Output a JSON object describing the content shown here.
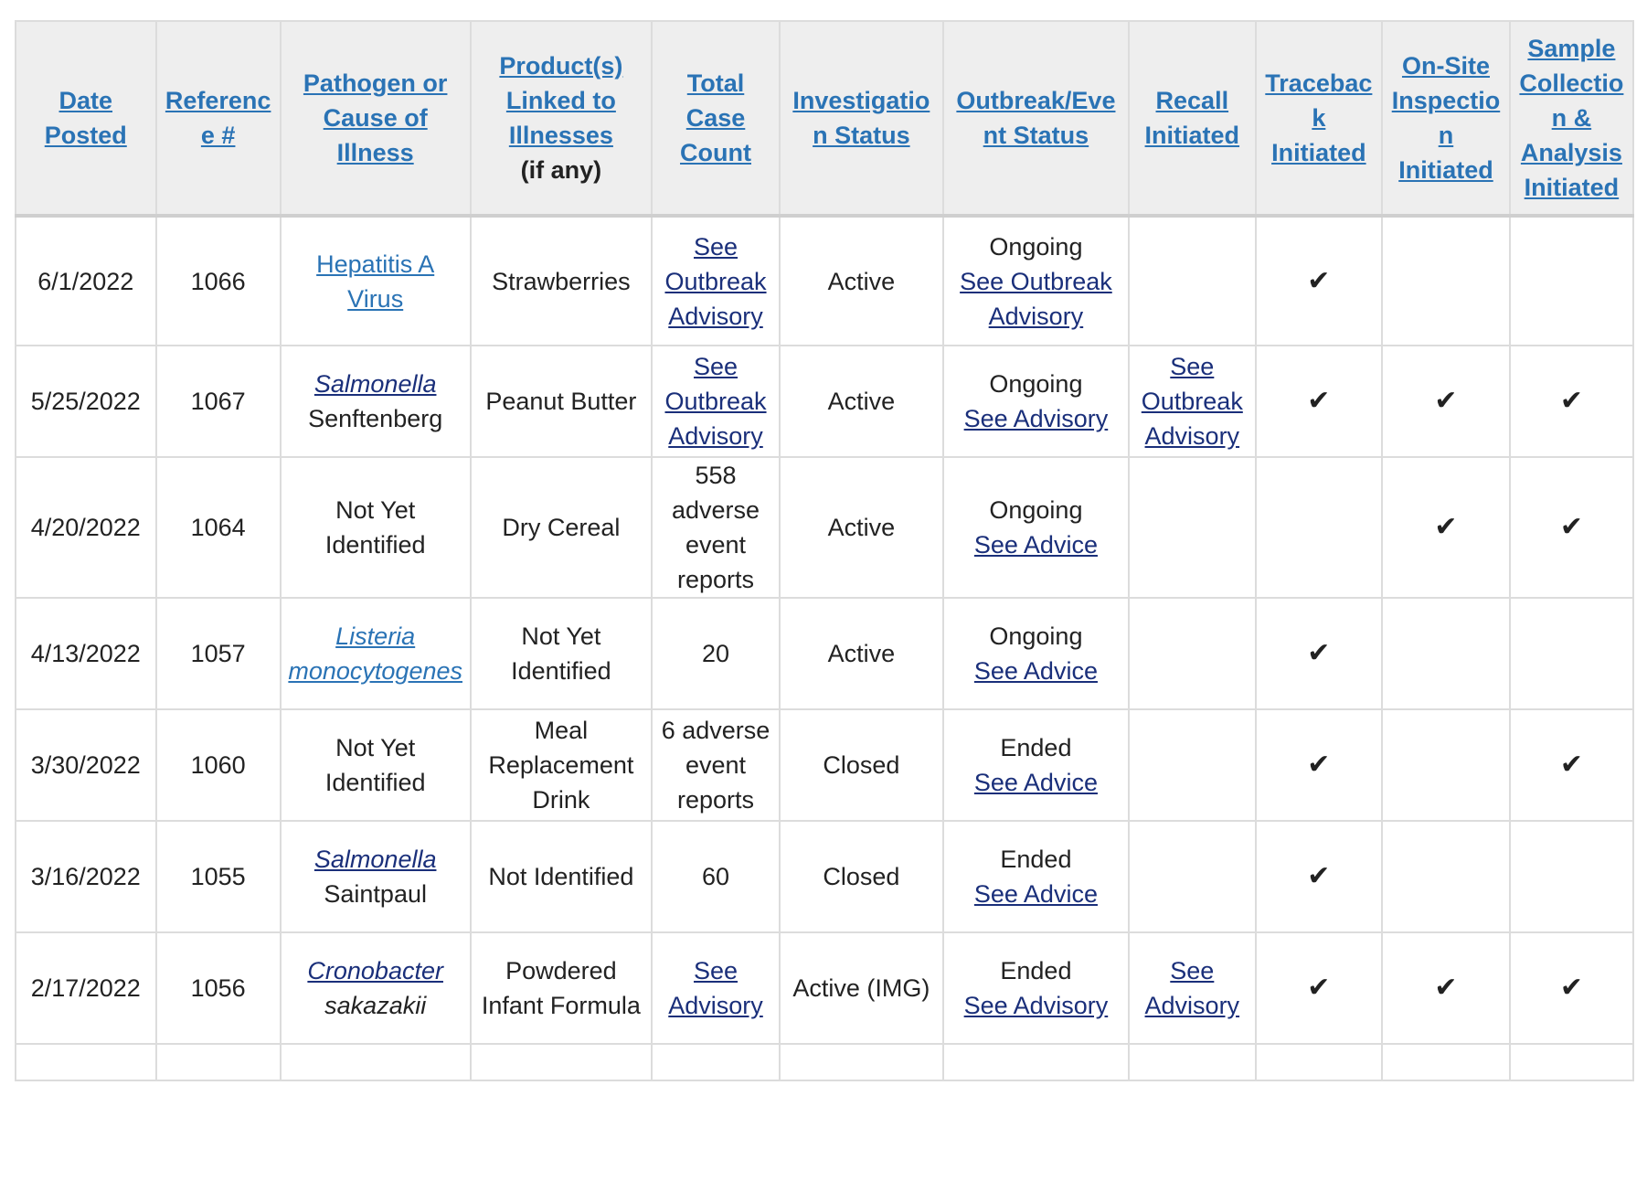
{
  "headers": {
    "date_posted": "Date Posted",
    "reference": "Reference #",
    "pathogen": "Pathogen or Cause of Illness",
    "products": "Product(s) Linked to Illnesses",
    "products_note": "(if any)",
    "case_count": "Total Case Count",
    "investigation_status": "Investigation Status",
    "outbreak_status": "Outbreak/Event Status",
    "recall": "Recall Initiated",
    "traceback": "Traceback Initiated",
    "onsite": "On-Site Inspection Initiated",
    "sample": "Sample Collection & Analysis Initiated"
  },
  "check_mark": "✔",
  "rows": [
    {
      "date": "6/1/2022",
      "ref": "1066",
      "pathogen_link": "Hepatitis A Virus",
      "pathogen_text": "",
      "product": "Strawberries",
      "case_link": "See Outbreak Advisory",
      "case_text": "",
      "investigation": "Active",
      "outbreak_state": "Ongoing",
      "outbreak_link": "See Outbreak Advisory",
      "recall_link": "",
      "traceback": true,
      "onsite": false,
      "sample": false
    },
    {
      "date": "5/25/2022",
      "ref": "1067",
      "pathogen_link": "Salmonella",
      "pathogen_text": "Senftenberg",
      "product": "Peanut Butter",
      "case_link": "See Outbreak Advisory",
      "case_text": "",
      "investigation": "Active",
      "outbreak_state": "Ongoing",
      "outbreak_link": "See Advisory",
      "recall_link": "See Outbreak Advisory",
      "traceback": true,
      "onsite": true,
      "sample": true
    },
    {
      "date": "4/20/2022",
      "ref": "1064",
      "pathogen_link": "",
      "pathogen_text": "Not Yet Identified",
      "product": "Dry Cereal",
      "case_link": "",
      "case_text": "558 adverse event reports",
      "investigation": "Active",
      "outbreak_state": "Ongoing",
      "outbreak_link": "See Advice",
      "recall_link": "",
      "traceback": false,
      "onsite": true,
      "sample": true
    },
    {
      "date": "4/13/2022",
      "ref": "1057",
      "pathogen_link": "Listeria monocytogenes",
      "pathogen_text": "",
      "product": "Not Yet Identified",
      "case_link": "",
      "case_text": "20",
      "investigation": "Active",
      "outbreak_state": "Ongoing",
      "outbreak_link": "See Advice",
      "recall_link": "",
      "traceback": true,
      "onsite": false,
      "sample": false
    },
    {
      "date": "3/30/2022",
      "ref": "1060",
      "pathogen_link": "",
      "pathogen_text": "Not Yet Identified",
      "product": "Meal Replacement Drink",
      "case_link": "",
      "case_text": "6 adverse event reports",
      "investigation": "Closed",
      "outbreak_state": "Ended",
      "outbreak_link": "See Advice",
      "recall_link": "",
      "traceback": true,
      "onsite": false,
      "sample": true
    },
    {
      "date": "3/16/2022",
      "ref": "1055",
      "pathogen_link": "Salmonella",
      "pathogen_text": "Saintpaul",
      "product": "Not Identified",
      "case_link": "",
      "case_text": "60",
      "investigation": "Closed",
      "outbreak_state": "Ended",
      "outbreak_link": "See Advice",
      "recall_link": "",
      "traceback": true,
      "onsite": false,
      "sample": false
    },
    {
      "date": "2/17/2022",
      "ref": "1056",
      "pathogen_link": "Cronobacter",
      "pathogen_text": "sakazakii",
      "product": "Powdered Infant Formula",
      "case_link": "See Advisory",
      "case_text": "",
      "investigation": "Active (IMG)",
      "outbreak_state": "Ended",
      "outbreak_link": "See Advisory",
      "recall_link": "See Advisory",
      "traceback": true,
      "onsite": true,
      "sample": true
    }
  ]
}
